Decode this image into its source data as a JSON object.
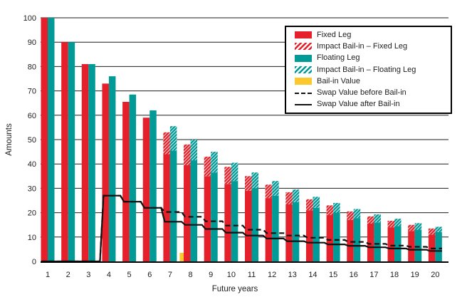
{
  "colors": {
    "red": "#e5202a",
    "teal": "#009a97",
    "yellow": "#fdc72e",
    "line": "#111111",
    "grid": "#1d1d1b",
    "text": "#1d1d1b"
  },
  "legend": {
    "items": [
      {
        "label": "Fixed Leg",
        "swatch": "solid-red"
      },
      {
        "label": "Impact Bail-in – Fixed Leg",
        "swatch": "hatch-red"
      },
      {
        "label": "Floating Leg",
        "swatch": "solid-teal"
      },
      {
        "label": "Impact Bail-in – Floating Leg",
        "swatch": "hatch-teal"
      },
      {
        "label": "Bail-in Value",
        "swatch": "solid-yellow"
      },
      {
        "label": "Swap Value before Bail-in",
        "swatch": "dashed-line"
      },
      {
        "label": "Swap Value after Bail-in",
        "swatch": "solid-line"
      }
    ]
  },
  "chart_data": {
    "type": "bar",
    "title": "",
    "xlabel": "Future years",
    "ylabel": "Amounts",
    "ylim": [
      0,
      100
    ],
    "y_ticks": [
      0,
      10,
      20,
      30,
      40,
      50,
      60,
      70,
      80,
      90,
      100
    ],
    "grid": true,
    "legend_position": "upper-right",
    "categories": [
      1,
      2,
      3,
      4,
      5,
      6,
      7,
      8,
      9,
      10,
      11,
      12,
      13,
      14,
      15,
      16,
      17,
      18,
      19,
      20
    ],
    "series": [
      {
        "name": "Fixed Leg",
        "type": "bar",
        "color": "red",
        "values": [
          100,
          90,
          81,
          73,
          65.5,
          59,
          44,
          39.5,
          35,
          31.8,
          29,
          26,
          23.4,
          21,
          19,
          17,
          15.5,
          14,
          12.5,
          11
        ]
      },
      {
        "name": "Impact Bail-in – Fixed Leg",
        "type": "bar-hatch",
        "color": "red",
        "stacked_on": "Fixed Leg",
        "values": [
          0,
          0,
          0,
          0,
          0,
          0,
          9,
          8.5,
          8,
          7,
          6,
          5.5,
          5,
          4.5,
          4,
          3.5,
          3,
          2.7,
          2.5,
          2.5
        ]
      },
      {
        "name": "Floating Leg",
        "type": "bar",
        "color": "teal",
        "values": [
          100,
          90,
          81,
          76,
          68.5,
          62,
          45.5,
          41.5,
          36.5,
          33,
          30,
          27,
          24.3,
          22,
          20,
          17.8,
          16,
          14.5,
          13,
          12
        ]
      },
      {
        "name": "Impact Bail-in – Floating Leg",
        "type": "bar-hatch",
        "color": "teal",
        "stacked_on": "Floating Leg",
        "values": [
          0,
          0,
          0,
          0,
          0,
          0,
          10,
          8.5,
          8.5,
          7.5,
          6.5,
          6,
          5.2,
          4.5,
          4,
          3.7,
          3.3,
          3,
          2.7,
          2.2
        ]
      },
      {
        "name": "Bail-in Value",
        "type": "bar-offset",
        "color": "yellow",
        "values": [
          0,
          0,
          0,
          0,
          0,
          0,
          3.5,
          0,
          0,
          0,
          0,
          0,
          0,
          0,
          0,
          0,
          0,
          0,
          0,
          0
        ]
      },
      {
        "name": "Swap Value before Bail-in",
        "type": "step-line",
        "style": "dashed",
        "values": [
          0,
          0,
          0,
          27,
          24.5,
          22,
          20.3,
          18.3,
          16.5,
          14.7,
          13,
          11.6,
          10.6,
          9.7,
          8.8,
          8,
          7.2,
          6.5,
          6,
          5.3
        ]
      },
      {
        "name": "Swap Value after Bail-in",
        "type": "step-line",
        "style": "solid",
        "values": [
          0,
          0,
          0,
          27,
          24.5,
          22,
          16.3,
          15,
          13.3,
          11.8,
          10.6,
          9.4,
          8.3,
          7.7,
          7,
          6.4,
          5.8,
          5.3,
          4.8,
          4.3
        ]
      }
    ]
  }
}
